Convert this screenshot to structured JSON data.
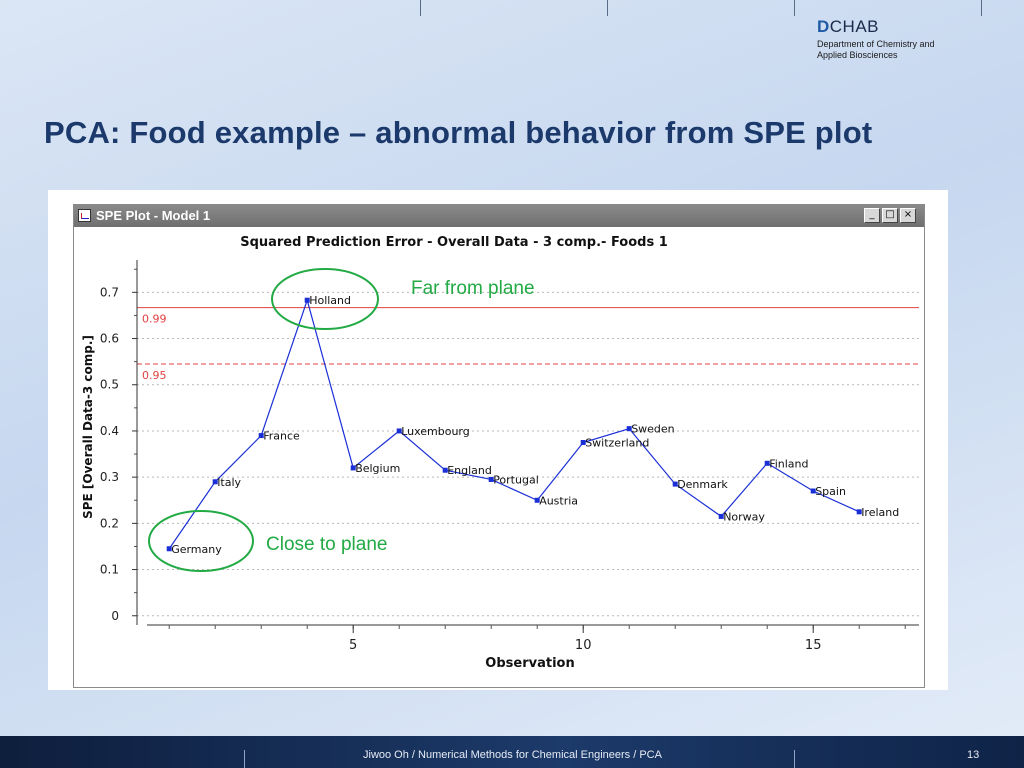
{
  "logo": {
    "brand_letter": "D",
    "brand_rest": "CHAB",
    "line1": "Department of Chemistry and",
    "line2": "Applied Biosciences"
  },
  "slide": {
    "title": "PCA: Food example – abnormal behavior from SPE plot"
  },
  "window": {
    "title": "SPE Plot - Model 1",
    "min_symbol": "_",
    "max_symbol": "□",
    "close_symbol": "×"
  },
  "annotations": {
    "far": "Far from plane",
    "close": "Close to plane"
  },
  "footer": {
    "text": "Jiwoo Oh / Numerical Methods for Chemical Engineers / PCA",
    "page": "13"
  },
  "colors": {
    "series": "#1a2fd6",
    "limit": "#e04040",
    "ellipse": "#22aa44",
    "annotation": "#22aa44"
  },
  "chart_data": {
    "type": "line",
    "title": "Squared Prediction Error - Overall Data - 3 comp.- Foods 1",
    "xlabel": "Observation",
    "ylabel": "SPE [Overall Data-3 comp.]",
    "xlim": [
      0.3,
      17.3
    ],
    "ylim": [
      -0.02,
      0.77
    ],
    "xticks": [
      5,
      10,
      15
    ],
    "yticks": [
      0,
      0.1,
      0.2,
      0.3,
      0.4,
      0.5,
      0.6,
      0.7
    ],
    "ytick_labels": [
      "0",
      "0.1",
      "0.2",
      "0.3",
      "0.4",
      "0.5",
      "0.6",
      "0.7"
    ],
    "grid": true,
    "limits": [
      {
        "label": "0.99",
        "value": 0.667,
        "style": "solid"
      },
      {
        "label": "0.95",
        "value": 0.545,
        "style": "dashed"
      }
    ],
    "series": [
      {
        "name": "SPE",
        "x": [
          1,
          2,
          3,
          4,
          5,
          6,
          7,
          8,
          9,
          10,
          11,
          12,
          13,
          14,
          15,
          16
        ],
        "labels": [
          "Germany",
          "Italy",
          "France",
          "Holland",
          "Belgium",
          "Luxembourg",
          "England",
          "Portugal",
          "Austria",
          "Switzerland",
          "Sweden",
          "Denmark",
          "Norway",
          "Finland",
          "Spain",
          "Ireland"
        ],
        "values": [
          0.145,
          0.29,
          0.39,
          0.683,
          0.32,
          0.4,
          0.315,
          0.295,
          0.25,
          0.375,
          0.405,
          0.285,
          0.215,
          0.33,
          0.27,
          0.225
        ]
      }
    ],
    "point_label_side": [
      "right",
      "right",
      "right",
      "right",
      "right",
      "right",
      "right",
      "right",
      "right",
      "right",
      "right",
      "right",
      "right",
      "right",
      "right",
      "right"
    ]
  }
}
